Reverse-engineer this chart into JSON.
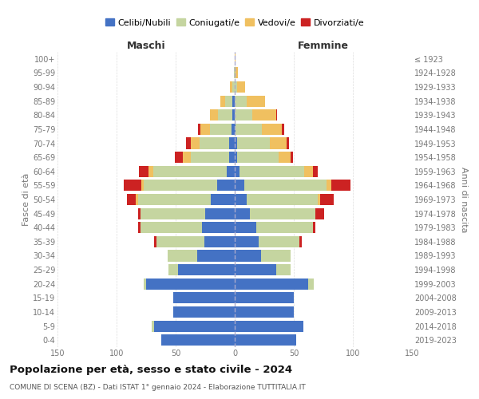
{
  "age_groups_bottom_to_top": [
    "0-4",
    "5-9",
    "10-14",
    "15-19",
    "20-24",
    "25-29",
    "30-34",
    "35-39",
    "40-44",
    "45-49",
    "50-54",
    "55-59",
    "60-64",
    "65-69",
    "70-74",
    "75-79",
    "80-84",
    "85-89",
    "90-94",
    "95-99",
    "100+"
  ],
  "birth_years_bottom_to_top": [
    "2019-2023",
    "2014-2018",
    "2009-2013",
    "2004-2008",
    "1999-2003",
    "1994-1998",
    "1989-1993",
    "1984-1988",
    "1979-1983",
    "1974-1978",
    "1969-1973",
    "1964-1968",
    "1959-1963",
    "1954-1958",
    "1949-1953",
    "1944-1948",
    "1939-1943",
    "1934-1938",
    "1929-1933",
    "1924-1928",
    "≤ 1923"
  ],
  "colors": {
    "celibe": "#4472c4",
    "coniugato": "#c5d5a0",
    "vedovo": "#f0c060",
    "divorziato": "#cc2222"
  },
  "maschi": {
    "celibe": [
      62,
      68,
      52,
      52,
      75,
      48,
      32,
      26,
      28,
      25,
      20,
      15,
      7,
      5,
      5,
      3,
      2,
      2,
      0,
      0,
      0
    ],
    "coniugato": [
      0,
      2,
      0,
      0,
      2,
      8,
      25,
      40,
      52,
      55,
      62,
      62,
      62,
      32,
      25,
      18,
      12,
      6,
      2,
      1,
      0
    ],
    "vedovo": [
      0,
      0,
      0,
      0,
      0,
      0,
      0,
      0,
      0,
      0,
      2,
      2,
      4,
      7,
      7,
      8,
      7,
      4,
      2,
      0,
      0
    ],
    "divorziato": [
      0,
      0,
      0,
      0,
      0,
      0,
      0,
      2,
      2,
      2,
      7,
      15,
      8,
      7,
      4,
      2,
      0,
      0,
      0,
      0,
      0
    ]
  },
  "femmine": {
    "nubile": [
      52,
      58,
      50,
      50,
      62,
      35,
      22,
      20,
      18,
      13,
      10,
      8,
      4,
      2,
      2,
      1,
      0,
      0,
      0,
      0,
      0
    ],
    "coniugata": [
      0,
      0,
      0,
      0,
      5,
      12,
      25,
      35,
      48,
      55,
      60,
      70,
      55,
      35,
      28,
      22,
      15,
      10,
      2,
      1,
      0
    ],
    "vedova": [
      0,
      0,
      0,
      0,
      0,
      0,
      0,
      0,
      0,
      0,
      2,
      4,
      7,
      10,
      14,
      17,
      20,
      16,
      7,
      2,
      1
    ],
    "divorziata": [
      0,
      0,
      0,
      0,
      0,
      0,
      0,
      2,
      2,
      8,
      12,
      16,
      4,
      2,
      2,
      2,
      1,
      0,
      0,
      0,
      0
    ]
  },
  "xlim": 150,
  "title_main": "Popolazione per età, sesso e stato civile - 2024",
  "title_sub": "COMUNE DI SCENA (BZ) - Dati ISTAT 1° gennaio 2024 - Elaborazione TUTTITALIA.IT",
  "legend_labels": [
    "Celibi/Nubili",
    "Coniugati/e",
    "Vedovi/e",
    "Divorziati/e"
  ],
  "maschi_label": "Maschi",
  "femmine_label": "Femmine",
  "ylabel_left": "Fasce di età",
  "ylabel_right": "Anni di nascita"
}
